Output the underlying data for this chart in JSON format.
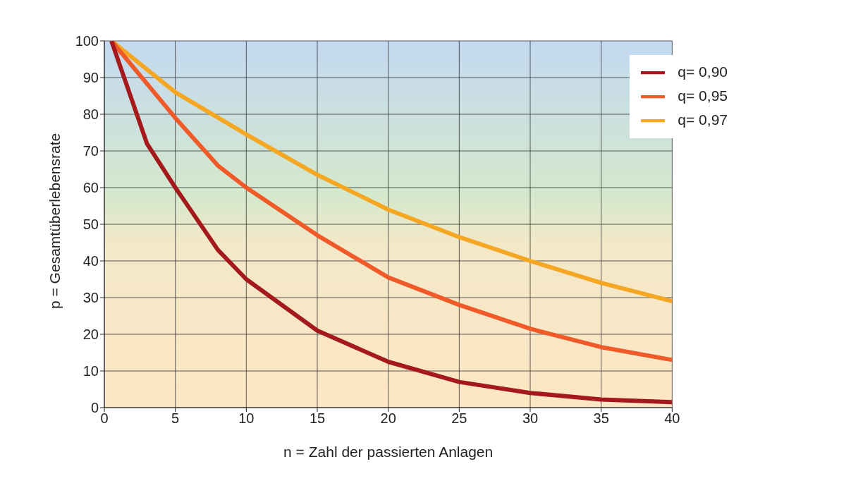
{
  "chart_data": {
    "type": "line",
    "xlabel": "n = Zahl der passierten Anlagen",
    "ylabel": "p = Gesamtüberlebensrate",
    "xlim": [
      0,
      40
    ],
    "xticks": [
      0,
      5,
      10,
      15,
      20,
      25,
      30,
      35,
      40
    ],
    "ylim": [
      0,
      100
    ],
    "yticks": [
      0,
      10,
      20,
      30,
      40,
      50,
      60,
      70,
      80,
      90,
      100
    ],
    "grid": true,
    "legend": "top right",
    "marker": "none",
    "line_style": "solid",
    "series": [
      {
        "name": "q= 0,97",
        "color": "#f5a623",
        "x": [
          0.5,
          5,
          10,
          15,
          20,
          25,
          30,
          35,
          40
        ],
        "values": [
          100,
          86,
          74.5,
          63.5,
          54,
          46.5,
          40,
          34,
          29
        ]
      },
      {
        "name": "q= 0,95",
        "color": "#f05a28",
        "x": [
          0.5,
          5,
          8,
          10,
          15,
          20,
          25,
          30,
          35,
          40
        ],
        "values": [
          100,
          79,
          66,
          60,
          47,
          35.5,
          28,
          21.5,
          16.5,
          13
        ]
      },
      {
        "name": "q= 0,90",
        "color": "#a3191c",
        "x": [
          0.5,
          3,
          5,
          8,
          10,
          15,
          20,
          25,
          30,
          35,
          40
        ],
        "values": [
          100,
          72,
          60,
          43,
          35,
          21,
          12.5,
          7,
          4,
          2.2,
          1.5
        ]
      }
    ]
  }
}
